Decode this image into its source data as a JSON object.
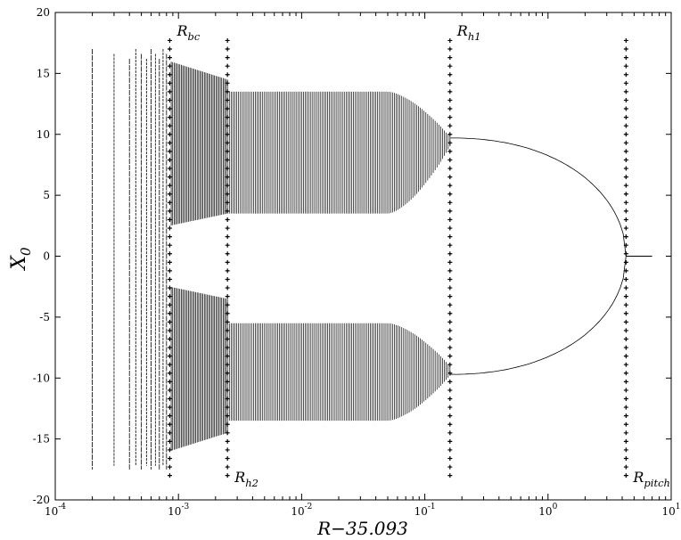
{
  "chart_data": {
    "type": "scatter",
    "title": "",
    "xlabel": "R−35.093",
    "ylabel": "X",
    "ylabel_sub": "0",
    "xscale": "log",
    "xlim": [
      0.0001,
      10
    ],
    "ylim": [
      -20,
      20
    ],
    "x_tick_labels": [
      {
        "base": "10",
        "exp": "-4"
      },
      {
        "base": "10",
        "exp": "-3"
      },
      {
        "base": "10",
        "exp": "-2"
      },
      {
        "base": "10",
        "exp": "-1"
      },
      {
        "base": "10",
        "exp": "0"
      },
      {
        "base": "10",
        "exp": "1"
      }
    ],
    "y_ticks": [
      -20,
      -15,
      -10,
      -5,
      0,
      5,
      10,
      15,
      20
    ],
    "grid": false,
    "markers": [
      {
        "name": "R",
        "sub": "bc",
        "x": 0.00085,
        "label_side": "top"
      },
      {
        "name": "R",
        "sub": "h2",
        "x": 0.0025,
        "label_side": "bottom"
      },
      {
        "name": "R",
        "sub": "h1",
        "x": 0.16,
        "label_side": "top"
      },
      {
        "name": "R",
        "sub": "pitch",
        "x": 4.3,
        "label_side": "bottom"
      }
    ],
    "regions": [
      {
        "kind": "sparse_chaotic",
        "x_from": 0.0002,
        "x_to": 0.00085,
        "y_upper": [
          -17.5,
          17
        ],
        "y_lower": null
      },
      {
        "kind": "periodic_band",
        "x_from": 0.00085,
        "x_to": 0.0025,
        "upper": [
          2.5,
          16
        ],
        "lower": [
          -16,
          -2.5
        ]
      },
      {
        "kind": "periodic_band",
        "x_from": 0.0025,
        "x_to": 0.16,
        "upper": [
          3.5,
          13.5
        ],
        "lower": [
          -13.5,
          -5.5
        ],
        "taper_to": [
          9,
          -9
        ]
      },
      {
        "kind": "fixed_point_branch",
        "x_from": 0.16,
        "x_to": 4.3,
        "y_start": 9.7,
        "y_end": 0.5,
        "sign": 1
      },
      {
        "kind": "fixed_point_branch",
        "x_from": 0.16,
        "x_to": 4.3,
        "y_start": -9.7,
        "y_end": -0.5,
        "sign": -1
      },
      {
        "kind": "fixed_point_zero",
        "x_from": 4.3,
        "x_to": 7,
        "y": 0
      }
    ]
  }
}
